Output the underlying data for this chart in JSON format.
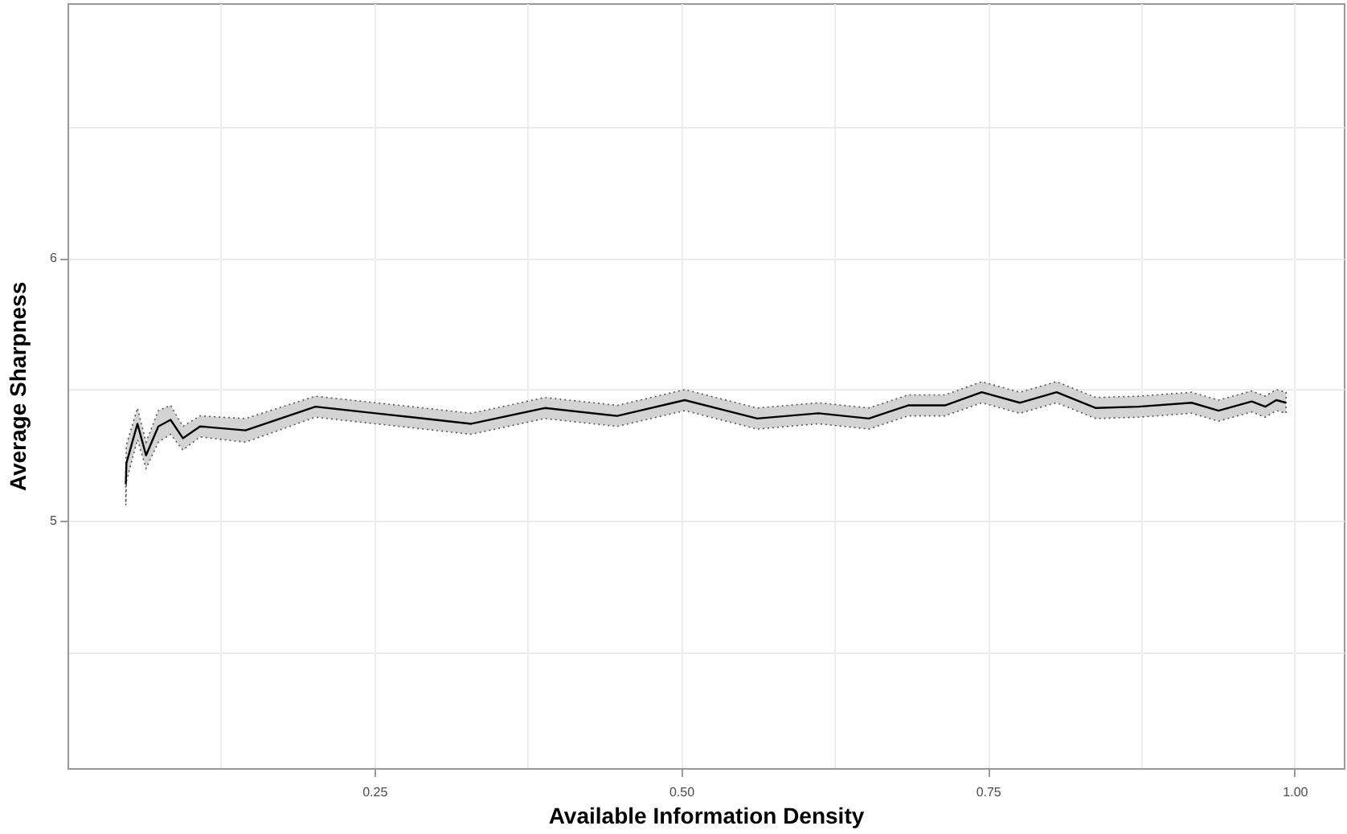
{
  "chart_data": {
    "type": "line",
    "xlabel": "Available Information Density",
    "ylabel": "Average Sharpness",
    "x": [
      0.0475,
      0.048,
      0.057,
      0.064,
      0.074,
      0.084,
      0.094,
      0.108,
      0.145,
      0.202,
      0.251,
      0.329,
      0.389,
      0.448,
      0.503,
      0.562,
      0.612,
      0.653,
      0.685,
      0.715,
      0.745,
      0.776,
      0.806,
      0.838,
      0.873,
      0.916,
      0.938,
      0.965,
      0.976,
      0.985,
      0.993
    ],
    "series": [
      {
        "color": "#000000",
        "values": [
          5.14,
          5.22,
          5.37,
          5.25,
          5.36,
          5.385,
          5.315,
          5.36,
          5.345,
          5.435,
          5.41,
          5.37,
          5.43,
          5.4,
          5.46,
          5.39,
          5.41,
          5.39,
          5.44,
          5.44,
          5.49,
          5.45,
          5.49,
          5.43,
          5.435,
          5.45,
          5.42,
          5.455,
          5.435,
          5.46,
          5.45
        ],
        "lower": [
          5.06,
          5.15,
          5.31,
          5.2,
          5.3,
          5.33,
          5.27,
          5.32,
          5.3,
          5.395,
          5.37,
          5.33,
          5.39,
          5.36,
          5.42,
          5.35,
          5.37,
          5.35,
          5.4,
          5.4,
          5.45,
          5.41,
          5.45,
          5.39,
          5.395,
          5.41,
          5.38,
          5.415,
          5.395,
          5.42,
          5.41
        ],
        "upper": [
          5.22,
          5.29,
          5.43,
          5.3,
          5.42,
          5.44,
          5.36,
          5.4,
          5.39,
          5.475,
          5.45,
          5.41,
          5.47,
          5.44,
          5.5,
          5.43,
          5.45,
          5.43,
          5.48,
          5.48,
          5.53,
          5.49,
          5.53,
          5.47,
          5.475,
          5.49,
          5.46,
          5.495,
          5.475,
          5.5,
          5.49
        ]
      }
    ],
    "xlim": [
      0.0,
      1.04
    ],
    "xticks": [
      {
        "value": 0.125,
        "label": null
      },
      0.25,
      {
        "value": 0.375,
        "label": null
      },
      {
        "value": 0.5,
        "label": "0.50"
      },
      {
        "value": 0.625,
        "label": null
      },
      0.75,
      {
        "value": 0.875,
        "label": null
      },
      {
        "value": 1.0,
        "label": "1.00"
      }
    ],
    "ylim": [
      4.06,
      6.97
    ],
    "yticks": [
      {
        "value": 4.5,
        "label": null
      },
      5,
      {
        "value": 5.5,
        "label": null
      },
      6,
      {
        "value": 6.5,
        "label": null
      }
    ],
    "grid": true
  }
}
